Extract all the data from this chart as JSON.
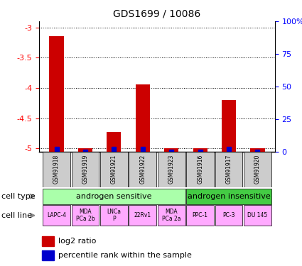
{
  "title": "GDS1699 / 10086",
  "samples": [
    "GSM91918",
    "GSM91919",
    "GSM91921",
    "GSM91922",
    "GSM91923",
    "GSM91916",
    "GSM91917",
    "GSM91920"
  ],
  "log2_ratio": [
    -3.15,
    -5.0,
    -4.72,
    -3.94,
    -5.0,
    -5.0,
    -4.2,
    -5.0
  ],
  "percentile_rank": [
    2,
    0,
    2,
    2,
    0,
    0,
    2,
    0
  ],
  "ylim": [
    -5.05,
    -2.9
  ],
  "yticks": [
    -3.0,
    -3.5,
    -4.0,
    -4.5,
    -5.0
  ],
  "ytick_labels": [
    "-3",
    "-3.5",
    "-4",
    "-4.5",
    "-5"
  ],
  "right_yticks": [
    0,
    25,
    50,
    75,
    100
  ],
  "right_ytick_labels": [
    "0",
    "25",
    "50",
    "75",
    "100%"
  ],
  "bar_color": "#cc0000",
  "pct_color": "#0000cc",
  "cell_type_sensitive": "androgen sensitive",
  "cell_type_insensitive": "androgen insensitive",
  "cell_type_sensitive_color": "#aaffaa",
  "cell_type_insensitive_color": "#44cc44",
  "cell_line_color": "#ffaaff",
  "cell_lines": [
    "LAPC-4",
    "MDA\nPCa 2b",
    "LNCa\nP",
    "22Rv1",
    "MDA\nPCa 2a",
    "PPC-1",
    "PC-3",
    "DU 145"
  ],
  "legend_bar": "log2 ratio",
  "legend_pct": "percentile rank within the sample",
  "sensitive_count": 5,
  "insensitive_count": 3,
  "sample_box_color": "#cccccc",
  "arrow_color": "#888888"
}
